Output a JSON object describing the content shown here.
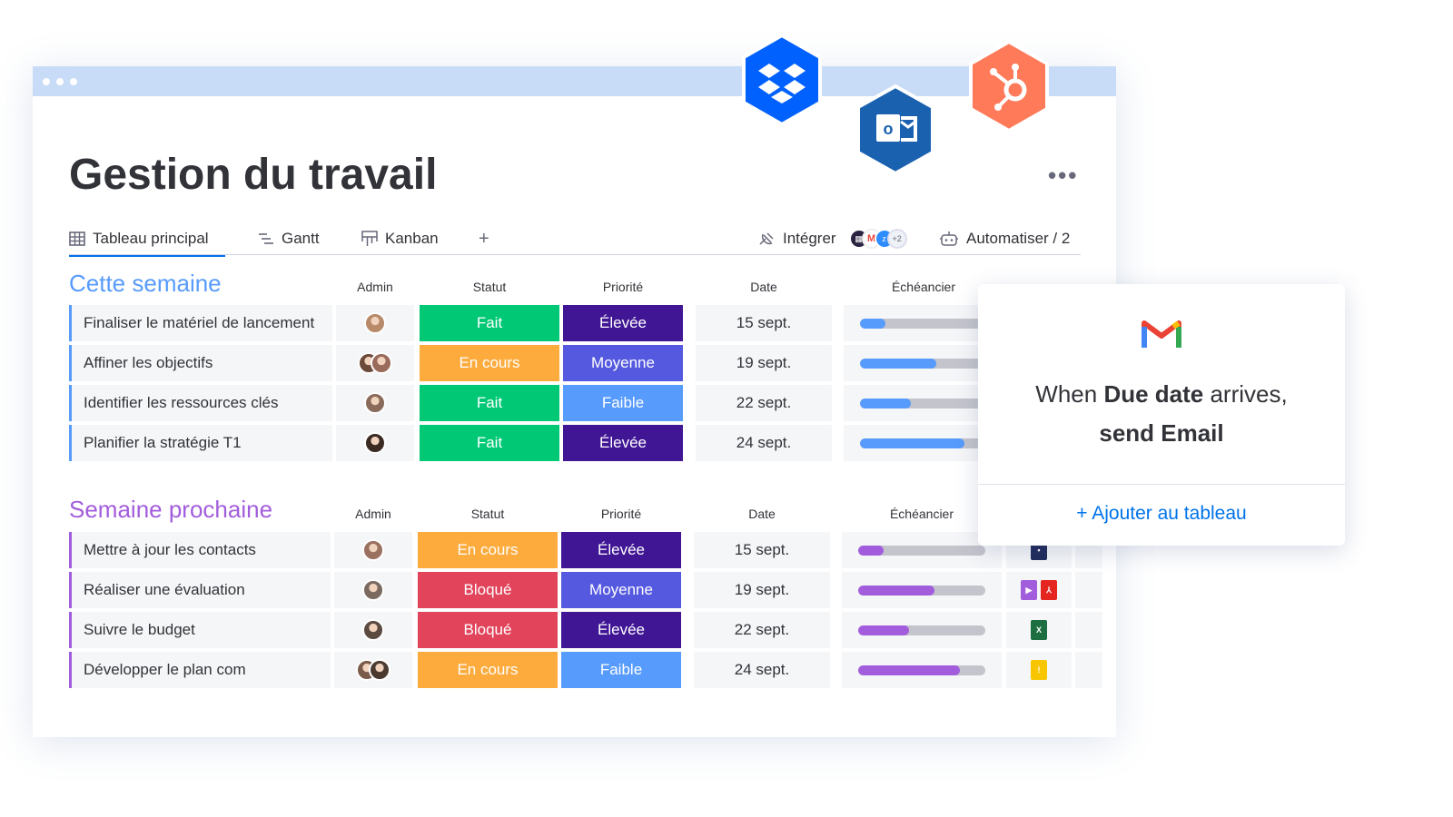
{
  "window": {
    "title": "Gestion du travail"
  },
  "tabs": [
    {
      "label": "Tableau principal",
      "icon": "table-icon"
    },
    {
      "label": "Gantt",
      "icon": "gantt-icon"
    },
    {
      "label": "Kanban",
      "icon": "kanban-icon"
    },
    {
      "label": "+",
      "icon": "plus-icon"
    }
  ],
  "tools": {
    "integrate_label": "Intégrer",
    "integrate_more": "+2",
    "automate_label": "Automatiser / 2"
  },
  "columns": {
    "admin": "Admin",
    "status": "Statut",
    "priority": "Priorité",
    "date": "Date",
    "timeline": "Échéancier"
  },
  "groups": [
    {
      "title": "Cette semaine",
      "color": "#579bfc",
      "rows": [
        {
          "name": "Finaliser le matériel de lancement",
          "status": "Fait",
          "status_color": "#00c875",
          "priority": "Élevée",
          "priority_color": "#401694",
          "date": "15 sept.",
          "progress": 0.2
        },
        {
          "name": "Affiner les objectifs",
          "status": "En cours",
          "status_color": "#fdab3d",
          "priority": "Moyenne",
          "priority_color": "#5559df",
          "date": "19 sept.",
          "progress": 0.6
        },
        {
          "name": "Identifier les ressources clés",
          "status": "Fait",
          "status_color": "#00c875",
          "priority": "Faible",
          "priority_color": "#579bfc",
          "date": "22 sept.",
          "progress": 0.4
        },
        {
          "name": "Planifier la stratégie T1",
          "status": "Fait",
          "status_color": "#00c875",
          "priority": "Élevée",
          "priority_color": "#401694",
          "date": "24 sept.",
          "progress": 0.82
        }
      ]
    },
    {
      "title": "Semaine prochaine",
      "color": "#a25ddc",
      "rows": [
        {
          "name": "Mettre à jour les contacts",
          "status": "En cours",
          "status_color": "#fdab3d",
          "priority": "Élevée",
          "priority_color": "#401694",
          "date": "15 sept.",
          "progress": 0.2
        },
        {
          "name": "Réaliser une évaluation",
          "status": "Bloqué",
          "status_color": "#e2445c",
          "priority": "Moyenne",
          "priority_color": "#5559df",
          "date": "19 sept.",
          "progress": 0.6
        },
        {
          "name": "Suivre le budget",
          "status": "Bloqué",
          "status_color": "#e2445c",
          "priority": "Élevée",
          "priority_color": "#401694",
          "date": "22 sept.",
          "progress": 0.4
        },
        {
          "name": "Développer le plan com",
          "status": "En cours",
          "status_color": "#fdab3d",
          "priority": "Faible",
          "priority_color": "#579bfc",
          "date": "24 sept.",
          "progress": 0.8
        }
      ]
    }
  ],
  "gmail_card": {
    "line1_pre": "When ",
    "line1_bold": "Due date",
    "line1_post": " arrives,",
    "line2": "send  Email",
    "add_label": "+ Ajouter au tableau"
  },
  "integrations": [
    "dropbox-icon",
    "outlook-icon",
    "hubspot-icon"
  ]
}
